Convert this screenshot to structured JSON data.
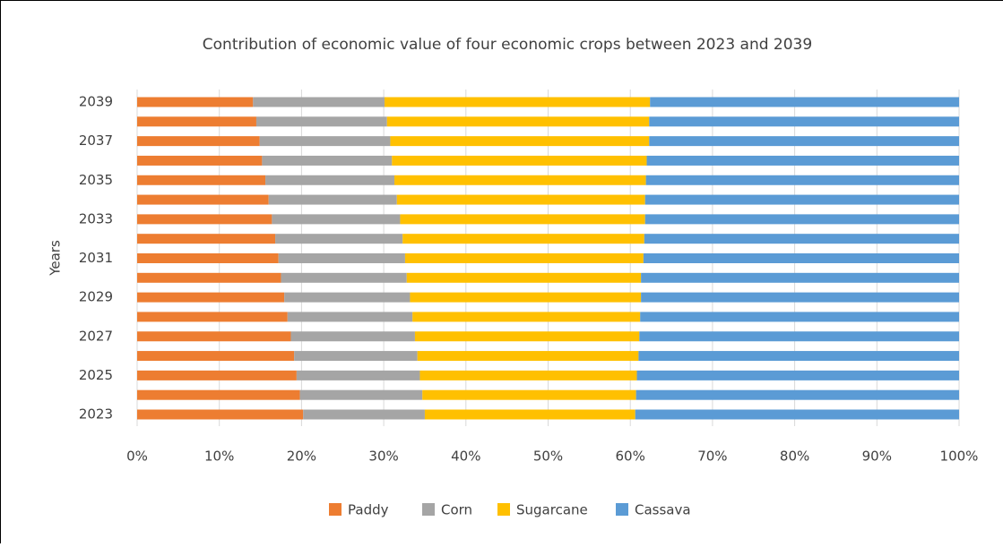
{
  "chart_data": {
    "type": "stacked_barh",
    "title": "Contribution of economic value of four economic crops between 2023 and 2039",
    "y_label": "Years",
    "categories": [
      "2023",
      null,
      "2025",
      null,
      "2027",
      null,
      "2029",
      null,
      "2031",
      null,
      "2033",
      null,
      "2035",
      null,
      "2037",
      null,
      "2039"
    ],
    "series": [
      {
        "name": "Paddy",
        "color": "#ed7d31",
        "values": [
          20.2,
          19.8,
          19.4,
          19.1,
          18.7,
          18.3,
          17.9,
          17.5,
          17.2,
          16.8,
          16.4,
          16.0,
          15.6,
          15.2,
          14.9,
          14.5,
          14.1
        ]
      },
      {
        "name": "Corn",
        "color": "#a5a5a5",
        "values": [
          14.8,
          14.9,
          15.0,
          15.0,
          15.1,
          15.2,
          15.3,
          15.3,
          15.4,
          15.5,
          15.6,
          15.6,
          15.7,
          15.8,
          15.9,
          15.9,
          16.0
        ]
      },
      {
        "name": "Sugarcane",
        "color": "#ffc000",
        "values": [
          25.6,
          26.0,
          26.4,
          26.9,
          27.3,
          27.7,
          28.1,
          28.5,
          29.0,
          29.4,
          29.8,
          30.2,
          30.6,
          31.0,
          31.5,
          31.9,
          32.3
        ]
      },
      {
        "name": "Cassava",
        "color": "#5b9bd5",
        "values": [
          39.4,
          39.3,
          39.2,
          39.0,
          38.9,
          38.8,
          38.7,
          38.7,
          38.4,
          38.3,
          38.2,
          38.2,
          38.1,
          38.0,
          37.7,
          37.7,
          37.6
        ]
      }
    ],
    "xlim": [
      0,
      100
    ],
    "xticks": [
      {
        "value": 0,
        "label": "0%"
      },
      {
        "value": 10,
        "label": "10%"
      },
      {
        "value": 20,
        "label": "20%"
      },
      {
        "value": 30,
        "label": "30%"
      },
      {
        "value": 40,
        "label": "40%"
      },
      {
        "value": 50,
        "label": "50%"
      },
      {
        "value": 60,
        "label": "60%"
      },
      {
        "value": 70,
        "label": "70%"
      },
      {
        "value": 80,
        "label": "80%"
      },
      {
        "value": 90,
        "label": "90%"
      },
      {
        "value": 100,
        "label": "100%"
      }
    ],
    "grid": true,
    "legend": "bottom"
  }
}
